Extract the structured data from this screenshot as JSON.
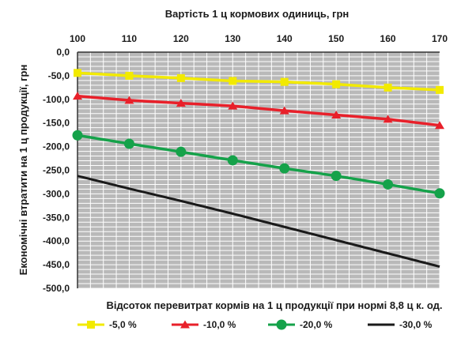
{
  "chart_data": {
    "type": "line",
    "title": "Вартість 1 ц кормових одиниць, грн",
    "xlabel": "Відсоток перевитрат кормів на 1 ц продукції при нормі 8,8 ц к. од.",
    "ylabel": "Економічні втратити на 1 ц продукції, грн",
    "x": [
      100,
      110,
      120,
      130,
      140,
      150,
      160,
      170
    ],
    "x_tick_labels": [
      "100",
      "110",
      "120",
      "130",
      "140",
      "150",
      "160",
      "170"
    ],
    "xlim": [
      100,
      170
    ],
    "x_axis_position": "top",
    "ylim": [
      -500,
      0
    ],
    "y_tick_values": [
      0,
      -50,
      -100,
      -150,
      -200,
      -250,
      -300,
      -350,
      -400,
      -450,
      -500
    ],
    "y_tick_labels": [
      "0,0",
      "-50,0",
      "-100,0",
      "-150,0",
      "-200,0",
      "-250,0",
      "-300,0",
      "-350,0",
      "-400,0",
      "-450,0",
      "-500,0"
    ],
    "grid": true,
    "legend_position": "bottom",
    "series": [
      {
        "name": "-5,0 %",
        "color": "#f2ea00",
        "marker": "square",
        "values": [
          -44,
          -50,
          -55,
          -61,
          -63,
          -68,
          -75,
          -80
        ]
      },
      {
        "name": "-10,0 %",
        "color": "#e8202a",
        "marker": "triangle",
        "values": [
          -93,
          -102,
          -108,
          -114,
          -124,
          -133,
          -142,
          -155
        ]
      },
      {
        "name": "-20,0 %",
        "color": "#15a24a",
        "marker": "circle",
        "values": [
          -176,
          -194,
          -211,
          -229,
          -246,
          -262,
          -280,
          -299
        ]
      },
      {
        "name": "-30,0 %",
        "color": "#1a1a1a",
        "marker": "none",
        "values": [
          -262,
          -289,
          -315,
          -342,
          -370,
          -398,
          -426,
          -454
        ]
      }
    ]
  }
}
